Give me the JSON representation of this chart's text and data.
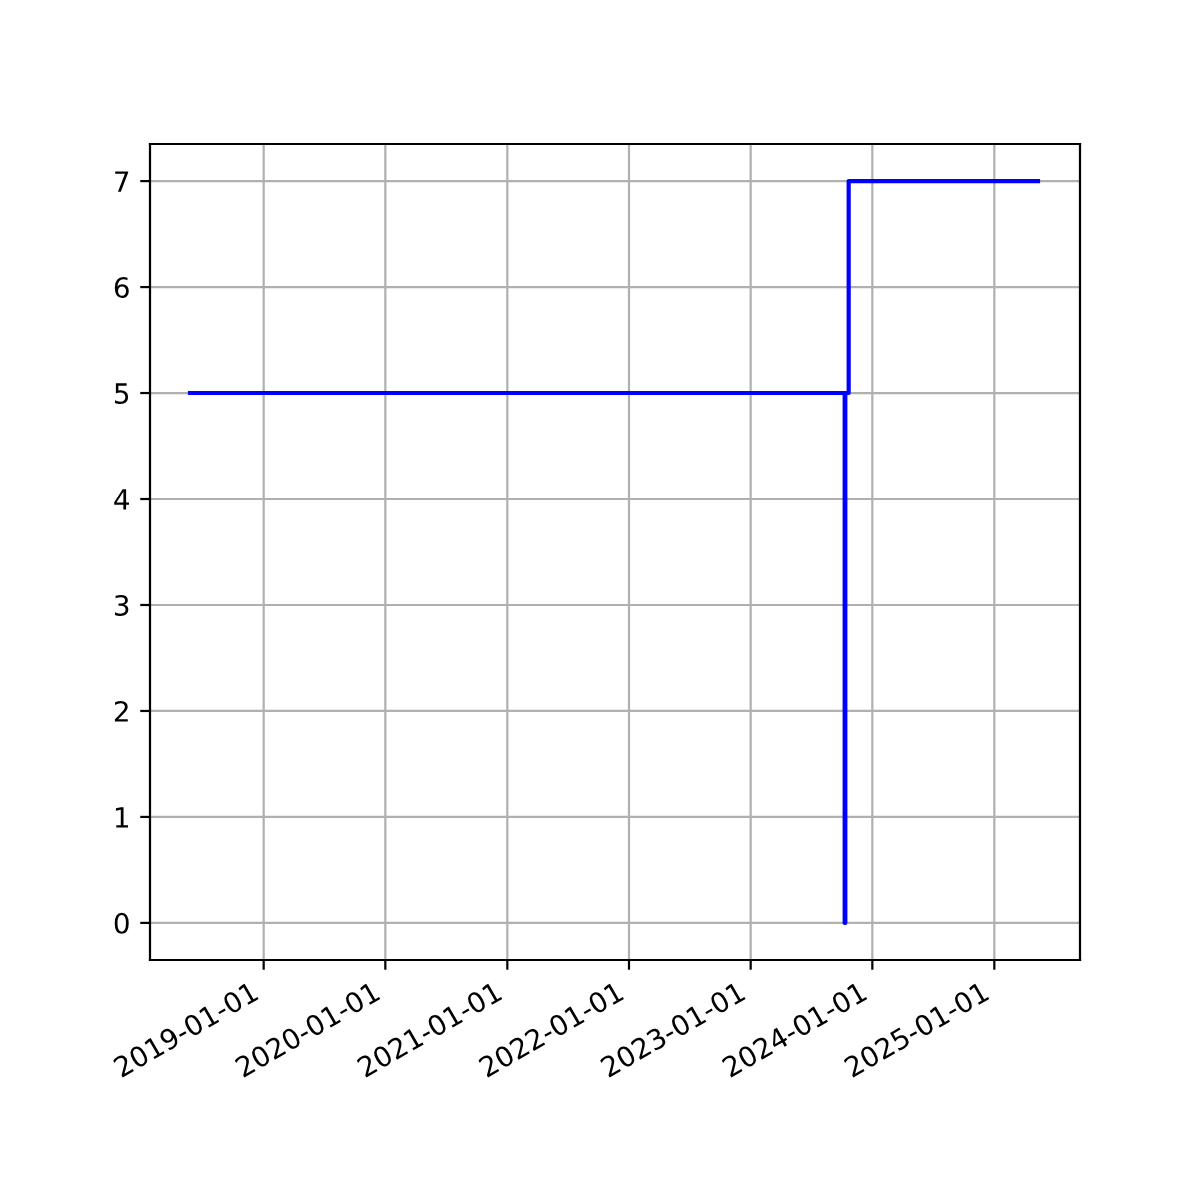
{
  "chart_data": {
    "type": "step",
    "x": [
      "2018-05-25",
      "2023-10-10",
      "2023-10-12",
      "2023-10-22",
      "2025-05-12"
    ],
    "series": [
      {
        "color": "#0000ff",
        "values": [
          5,
          0,
          5,
          7,
          7
        ]
      }
    ],
    "xlim": [
      "2018-01-25",
      "2025-09-15"
    ],
    "xticks": [
      {
        "value": "2019-01-01",
        "label": "2019-01-01"
      },
      {
        "value": "2020-01-01",
        "label": "2020-01-01"
      },
      {
        "value": "2021-01-01",
        "label": "2021-01-01"
      },
      {
        "value": "2022-01-01",
        "label": "2022-01-01"
      },
      {
        "value": "2023-01-01",
        "label": "2023-01-01"
      },
      {
        "value": "2024-01-01",
        "label": "2024-01-01"
      },
      {
        "value": "2025-01-01",
        "label": "2025-01-01"
      }
    ],
    "ylim": [
      -0.35,
      7.35
    ],
    "yticks": [
      0,
      1,
      2,
      3,
      4,
      5,
      6,
      7
    ],
    "grid": true,
    "legend": false
  }
}
